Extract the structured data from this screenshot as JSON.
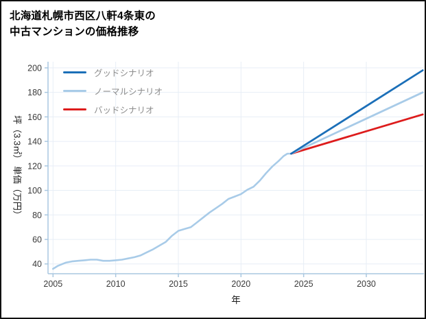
{
  "chart_data": {
    "type": "line",
    "title_lines": [
      "北海道札幌市西区八軒4条東の",
      "中古マンションの価格推移"
    ],
    "xlabel": "年",
    "ylabel": "坪（3.3㎡） 単価（万円）",
    "xlim": [
      2004.6,
      2034.6
    ],
    "ylim": [
      32,
      205
    ],
    "xticks": [
      2005,
      2010,
      2015,
      2020,
      2025,
      2030
    ],
    "yticks": [
      40,
      60,
      80,
      100,
      120,
      140,
      160,
      180,
      200
    ],
    "grid": true,
    "legend_position": "upper-left",
    "axis_color": "#a9c7e0",
    "grid_color": "#e7eef6",
    "tick_label_color": "#3a3a3a",
    "history": {
      "color": "#a8cbe8",
      "x": [
        2005,
        2005.4,
        2006,
        2006.5,
        2007,
        2007.5,
        2008,
        2008.5,
        2009,
        2009.5,
        2010,
        2010.5,
        2011,
        2011.5,
        2012,
        2012.5,
        2013,
        2013.5,
        2014,
        2014.5,
        2015,
        2015.5,
        2016,
        2016.5,
        2017,
        2017.5,
        2018,
        2018.5,
        2019,
        2019.5,
        2020,
        2020.5,
        2021,
        2021.5,
        2022,
        2022.5,
        2023,
        2023.4,
        2023.7,
        2024
      ],
      "y": [
        36,
        38.5,
        41,
        42,
        42.5,
        43,
        43.5,
        43.5,
        42.5,
        42.5,
        43,
        43.5,
        44.5,
        45.5,
        47,
        49.5,
        52,
        55,
        58,
        63,
        67,
        68.5,
        70,
        74,
        78,
        82,
        85.5,
        89,
        93,
        95,
        97,
        100.5,
        103,
        108,
        114,
        119.5,
        124,
        128,
        130,
        130
      ]
    },
    "scenarios": [
      {
        "name": "グッドシナリオ",
        "color": "#1b6fb8",
        "x": [
          2024,
          2034.5
        ],
        "y": [
          130,
          198
        ]
      },
      {
        "name": "ノーマルシナリオ",
        "color": "#a8cbe8",
        "x": [
          2024,
          2034.5
        ],
        "y": [
          130,
          180
        ]
      },
      {
        "name": "バッドシナリオ",
        "color": "#dd1c1c",
        "x": [
          2024,
          2034.5
        ],
        "y": [
          130,
          162
        ]
      }
    ]
  }
}
